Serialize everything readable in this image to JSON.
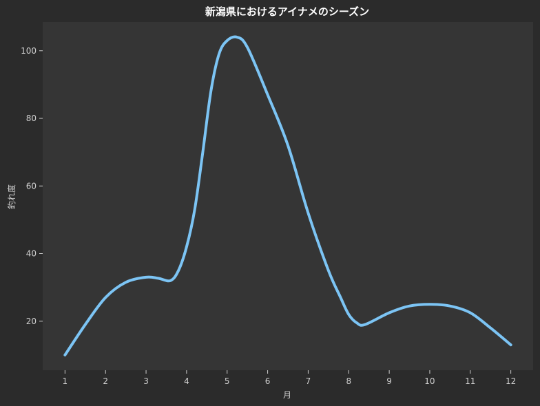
{
  "chart_data": {
    "type": "line",
    "title": "新潟県におけるアイナメのシーズン",
    "xlabel": "月",
    "ylabel": "釣れ度",
    "x": [
      1,
      1.5,
      2,
      2.5,
      3,
      3.3,
      3.6,
      3.8,
      4,
      4.2,
      4.4,
      4.6,
      4.8,
      5,
      5.25,
      5.5,
      6,
      6.5,
      7,
      7.5,
      7.8,
      8,
      8.2,
      8.4,
      9,
      9.5,
      10,
      10.5,
      11,
      11.5,
      12
    ],
    "values": [
      10,
      19,
      27,
      31.5,
      33,
      32.7,
      32,
      35,
      42,
      53,
      70,
      88,
      99,
      103,
      104,
      101,
      87,
      72,
      52,
      35,
      27,
      22,
      19.5,
      19,
      22.5,
      24.5,
      25,
      24.5,
      22.5,
      18,
      13
    ],
    "xticks": [
      "1",
      "2",
      "3",
      "4",
      "5",
      "6",
      "7",
      "8",
      "9",
      "10",
      "11",
      "12"
    ],
    "yticks": [
      "20",
      "40",
      "60",
      "80",
      "100"
    ],
    "xlim": [
      0.45,
      12.55
    ],
    "ylim": [
      5.5,
      108.5
    ],
    "line_color": "#7cc4f4",
    "plot_background": "#353535",
    "page_background": "#2b2b2b",
    "grid": false,
    "legend": false
  }
}
